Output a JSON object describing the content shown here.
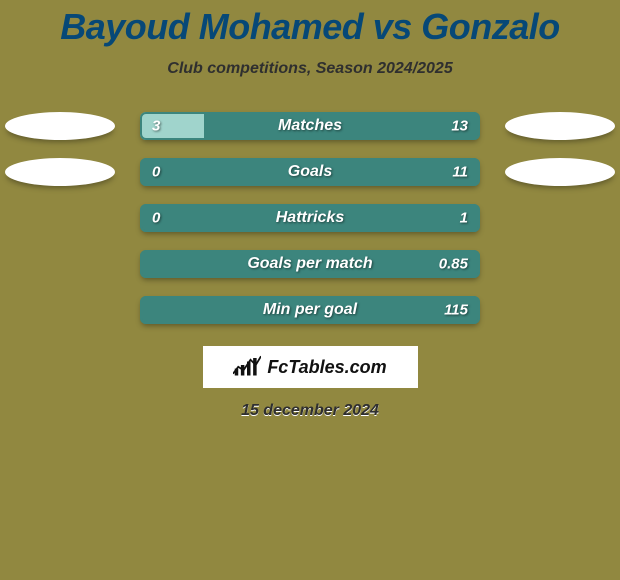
{
  "background_color": "#918840",
  "title": "Bayoud Mohamed vs Gonzalo",
  "title_color": "#064877",
  "subtitle": "Club competitions, Season 2024/2025",
  "bar_colors": {
    "left": "#a0d4cc",
    "right": "#3c857d",
    "border": "#3c857d"
  },
  "rows": [
    {
      "metric": "Matches",
      "left": "3",
      "right": "13",
      "left_pct": 18.8,
      "ellipse_left": true,
      "ellipse_right": true
    },
    {
      "metric": "Goals",
      "left": "0",
      "right": "11",
      "left_pct": 0.0,
      "ellipse_left": true,
      "ellipse_right": true
    },
    {
      "metric": "Hattricks",
      "left": "0",
      "right": "1",
      "left_pct": 0.0,
      "ellipse_left": false,
      "ellipse_right": false
    },
    {
      "metric": "Goals per match",
      "left": "",
      "right": "0.85",
      "left_pct": 0.0,
      "ellipse_left": false,
      "ellipse_right": false
    },
    {
      "metric": "Min per goal",
      "left": "",
      "right": "115",
      "left_pct": 0.0,
      "ellipse_left": false,
      "ellipse_right": false
    }
  ],
  "branding": "FcTables.com",
  "date": "15 december 2024"
}
